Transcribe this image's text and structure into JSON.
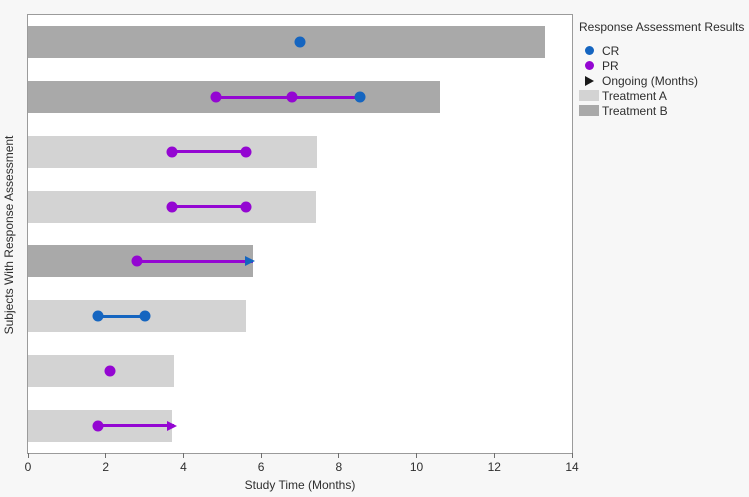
{
  "figure": {
    "background": "#f7f7f7",
    "plot_background": "#ffffff",
    "plot_border": "#9b9b9b"
  },
  "chart_data": {
    "type": "bar",
    "subtype": "swimmer-plot",
    "orientation": "horizontal",
    "title": "",
    "xlabel": "Study Time (Months)",
    "ylabel": "Subjects With Response Assessment",
    "xlim": [
      0,
      14
    ],
    "xticks": [
      0,
      2,
      4,
      6,
      8,
      10,
      12,
      14
    ],
    "grid": false,
    "colors": {
      "CR": "#1565c0",
      "PR": "#9406d2",
      "treatment_a": "#d3d3d3",
      "treatment_b": "#a9a9a9",
      "ongoing_arrow_legend": "#1a1a1a"
    },
    "legend": {
      "title": "Response Assessment Results",
      "position": "right-top",
      "items": [
        {
          "label": "CR",
          "marker": "dot",
          "color_key": "CR"
        },
        {
          "label": "PR",
          "marker": "dot",
          "color_key": "PR"
        },
        {
          "label": "Ongoing (Months)",
          "marker": "arrow",
          "color_key": "ongoing_arrow_legend"
        },
        {
          "label": "Treatment A",
          "marker": "swatch",
          "color_key": "treatment_a"
        },
        {
          "label": "Treatment B",
          "marker": "swatch",
          "color_key": "treatment_b"
        }
      ]
    },
    "subjects": [
      {
        "treatment": "B",
        "bar_months": 13.3,
        "markers": [
          {
            "type": "CR",
            "x": 7.0
          }
        ]
      },
      {
        "treatment": "B",
        "bar_months": 10.6,
        "line": {
          "from": 4.85,
          "to": 8.55,
          "color_key": "PR"
        },
        "markers": [
          {
            "type": "PR",
            "x": 4.85
          },
          {
            "type": "PR",
            "x": 6.8
          },
          {
            "type": "CR",
            "x": 8.55
          }
        ]
      },
      {
        "treatment": "A",
        "bar_months": 7.45,
        "line": {
          "from": 3.7,
          "to": 5.6,
          "color_key": "PR"
        },
        "markers": [
          {
            "type": "PR",
            "x": 3.7
          },
          {
            "type": "PR",
            "x": 5.6
          }
        ]
      },
      {
        "treatment": "A",
        "bar_months": 7.4,
        "line": {
          "from": 3.7,
          "to": 5.6,
          "color_key": "PR"
        },
        "markers": [
          {
            "type": "PR",
            "x": 3.7
          },
          {
            "type": "PR",
            "x": 5.6
          }
        ]
      },
      {
        "treatment": "B",
        "bar_months": 5.8,
        "line": {
          "from": 2.8,
          "to": 5.8,
          "color_key": "PR"
        },
        "arrow": {
          "x": 5.85,
          "color_key": "CR"
        },
        "markers": [
          {
            "type": "PR",
            "x": 2.8
          }
        ]
      },
      {
        "treatment": "A",
        "bar_months": 5.6,
        "line": {
          "from": 1.8,
          "to": 3.0,
          "color_key": "CR"
        },
        "markers": [
          {
            "type": "CR",
            "x": 1.8
          },
          {
            "type": "CR",
            "x": 3.0
          }
        ]
      },
      {
        "treatment": "A",
        "bar_months": 3.75,
        "markers": [
          {
            "type": "PR",
            "x": 2.1
          }
        ]
      },
      {
        "treatment": "A",
        "bar_months": 3.7,
        "line": {
          "from": 1.8,
          "to": 3.75,
          "color_key": "PR"
        },
        "arrow": {
          "x": 3.83,
          "color_key": "PR"
        },
        "markers": [
          {
            "type": "PR",
            "x": 1.8
          }
        ]
      }
    ]
  }
}
